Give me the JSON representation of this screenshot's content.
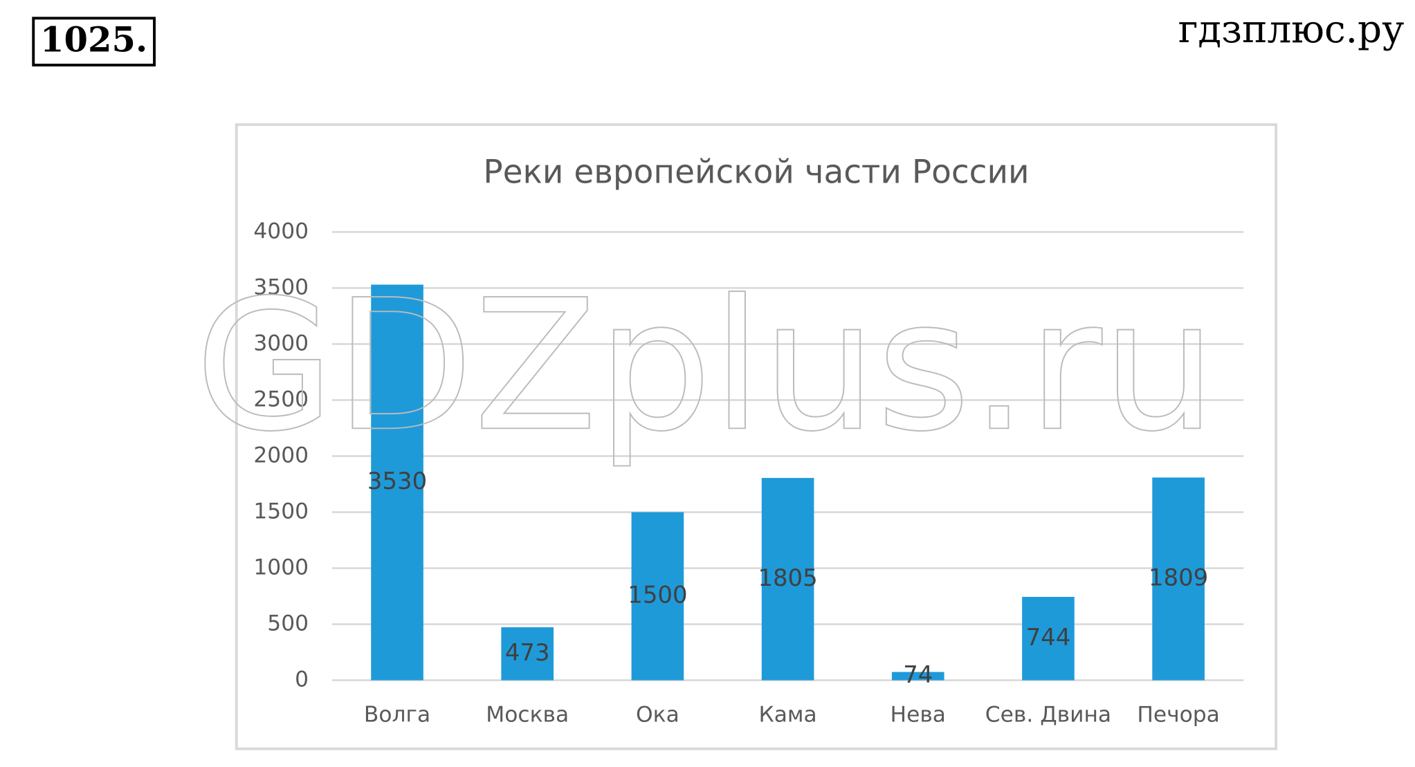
{
  "header": {
    "number": "1025.",
    "site": "гдзплюс.ру"
  },
  "watermark": "GDZplus.ru",
  "chart_data": {
    "type": "bar",
    "title": "Реки европейской части России",
    "categories": [
      "Волга",
      "Москва",
      "Ока",
      "Кама",
      "Нева",
      "Сев. Двина",
      "Печора"
    ],
    "values": [
      3530,
      473,
      1500,
      1805,
      74,
      744,
      1809
    ],
    "color": "#1f9ad9",
    "ylim": [
      0,
      4000
    ],
    "yticks": [
      0,
      500,
      1000,
      1500,
      2000,
      2500,
      3000,
      3500,
      4000
    ],
    "grid": true,
    "data_labels": true
  }
}
